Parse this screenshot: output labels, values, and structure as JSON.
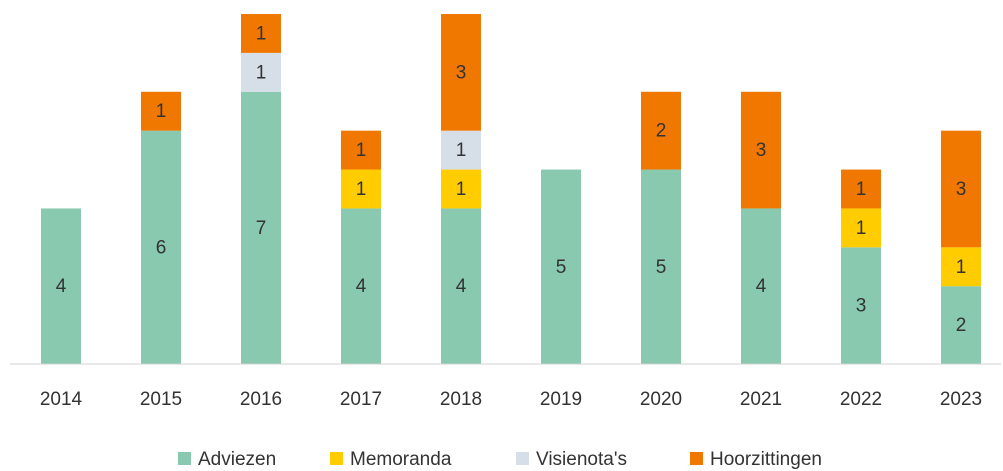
{
  "chart_data": {
    "type": "bar",
    "stacked": true,
    "categories": [
      "2014",
      "2015",
      "2016",
      "2017",
      "2018",
      "2019",
      "2020",
      "2021",
      "2022",
      "2023"
    ],
    "series": [
      {
        "name": "Adviezen",
        "color": "#88c9b0",
        "values": [
          4,
          6,
          7,
          4,
          4,
          5,
          5,
          4,
          3,
          2
        ]
      },
      {
        "name": "Memoranda",
        "color": "#ffcc00",
        "values": [
          0,
          0,
          0,
          1,
          1,
          0,
          0,
          0,
          1,
          1
        ]
      },
      {
        "name": "Visienota's",
        "color": "#d6dfe8",
        "values": [
          0,
          0,
          1,
          0,
          1,
          0,
          0,
          0,
          0,
          0
        ]
      },
      {
        "name": "Hoorzittingen",
        "color": "#f07800",
        "values": [
          0,
          1,
          1,
          1,
          3,
          0,
          2,
          3,
          1,
          3
        ]
      }
    ],
    "ylim": [
      0,
      9
    ],
    "legend": "bottom"
  }
}
